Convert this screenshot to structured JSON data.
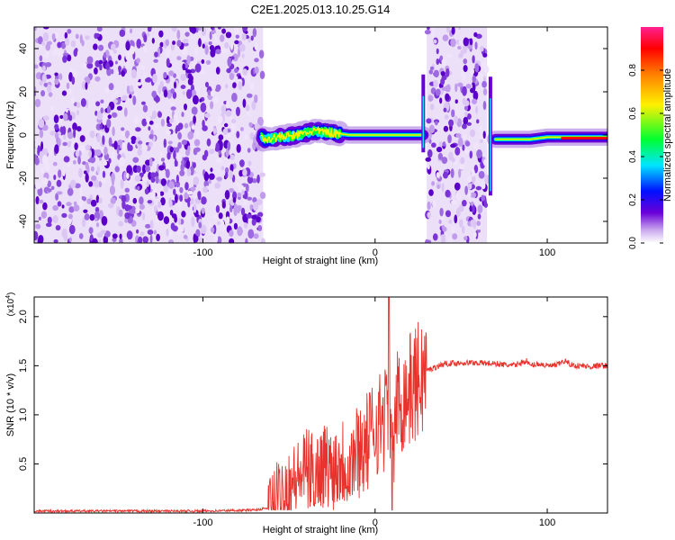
{
  "title": "C2E1.2025.013.10.25.G14",
  "chart_data": [
    {
      "type": "heatmap",
      "xlabel": "Height of straight line (km)",
      "ylabel": "Frequency (Hz)",
      "xlim": [
        -198,
        135
      ],
      "ylim": [
        -50,
        50
      ],
      "xticks": [
        -100,
        0,
        100
      ],
      "yticks": [
        -40,
        -20,
        0,
        20,
        40
      ],
      "colorbar": {
        "label": "Normalized spectral amplitude",
        "range": [
          0.0,
          1.0
        ],
        "ticks": [
          0.0,
          0.2,
          0.4,
          0.6,
          0.8
        ],
        "tick_labels": [
          "0.0",
          "0.2",
          "0.4",
          "0.6",
          "0.8"
        ],
        "colormap": [
          "#ffffff",
          "#c9a8ee",
          "#6a00d8",
          "#0010ff",
          "#00e5ff",
          "#00ff30",
          "#fff000",
          "#ff8000",
          "#ff0000",
          "#ff2090"
        ]
      },
      "noise_regions": [
        [
          -198,
          -65
        ],
        [
          30,
          65
        ]
      ],
      "signal_track": [
        {
          "x": -65,
          "y": -2
        },
        {
          "x": -55,
          "y": -1
        },
        {
          "x": -45,
          "y": 0
        },
        {
          "x": -35,
          "y": 2
        },
        {
          "x": -25,
          "y": 1
        },
        {
          "x": -15,
          "y": 0
        },
        {
          "x": -5,
          "y": 0
        },
        {
          "x": 5,
          "y": 0
        },
        {
          "x": 15,
          "y": 0
        },
        {
          "x": 28,
          "y": 0
        },
        {
          "x": 70,
          "y": -2
        },
        {
          "x": 80,
          "y": -2
        },
        {
          "x": 90,
          "y": -2
        },
        {
          "x": 100,
          "y": -1
        },
        {
          "x": 110,
          "y": -1
        },
        {
          "x": 120,
          "y": -1
        },
        {
          "x": 130,
          "y": -1
        }
      ]
    },
    {
      "type": "line",
      "xlabel": "Height of straight line (km)",
      "ylabel": "SNR (10 * v/v)",
      "y_multiplier": "(x10",
      "y_multiplier_exp": "4",
      "y_multiplier_close": ")",
      "xlim": [
        -198,
        135
      ],
      "ylim": [
        0,
        2.2
      ],
      "xticks": [
        -100,
        0,
        100
      ],
      "yticks": [
        0.5,
        1.0,
        1.5,
        2.0
      ],
      "ytick_labels": [
        "0.5",
        "1.0",
        "1.5",
        "2.0"
      ],
      "color": "#e8322b",
      "series": [
        {
          "x": [
            -198,
            -150,
            -100,
            -70,
            -62,
            -55,
            -50,
            -45,
            -40,
            -35,
            -30,
            -25,
            -20,
            -15,
            -10,
            -5,
            0,
            5,
            8,
            10,
            12,
            15,
            20,
            30,
            40,
            50,
            60,
            70,
            80,
            88,
            90,
            95,
            100,
            105,
            110,
            115,
            120,
            125,
            130,
            135
          ],
          "y": [
            0.02,
            0.02,
            0.02,
            0.03,
            0.05,
            0.2,
            0.3,
            0.35,
            0.45,
            0.4,
            0.5,
            0.45,
            0.55,
            0.5,
            0.65,
            0.7,
            0.9,
            0.95,
            1.2,
            0.3,
            1.1,
            1.15,
            1.25,
            1.45,
            1.52,
            1.53,
            1.53,
            1.52,
            1.5,
            1.55,
            1.5,
            1.52,
            1.5,
            1.5,
            1.55,
            1.5,
            1.5,
            1.49,
            1.5,
            1.5
          ]
        }
      ]
    }
  ]
}
